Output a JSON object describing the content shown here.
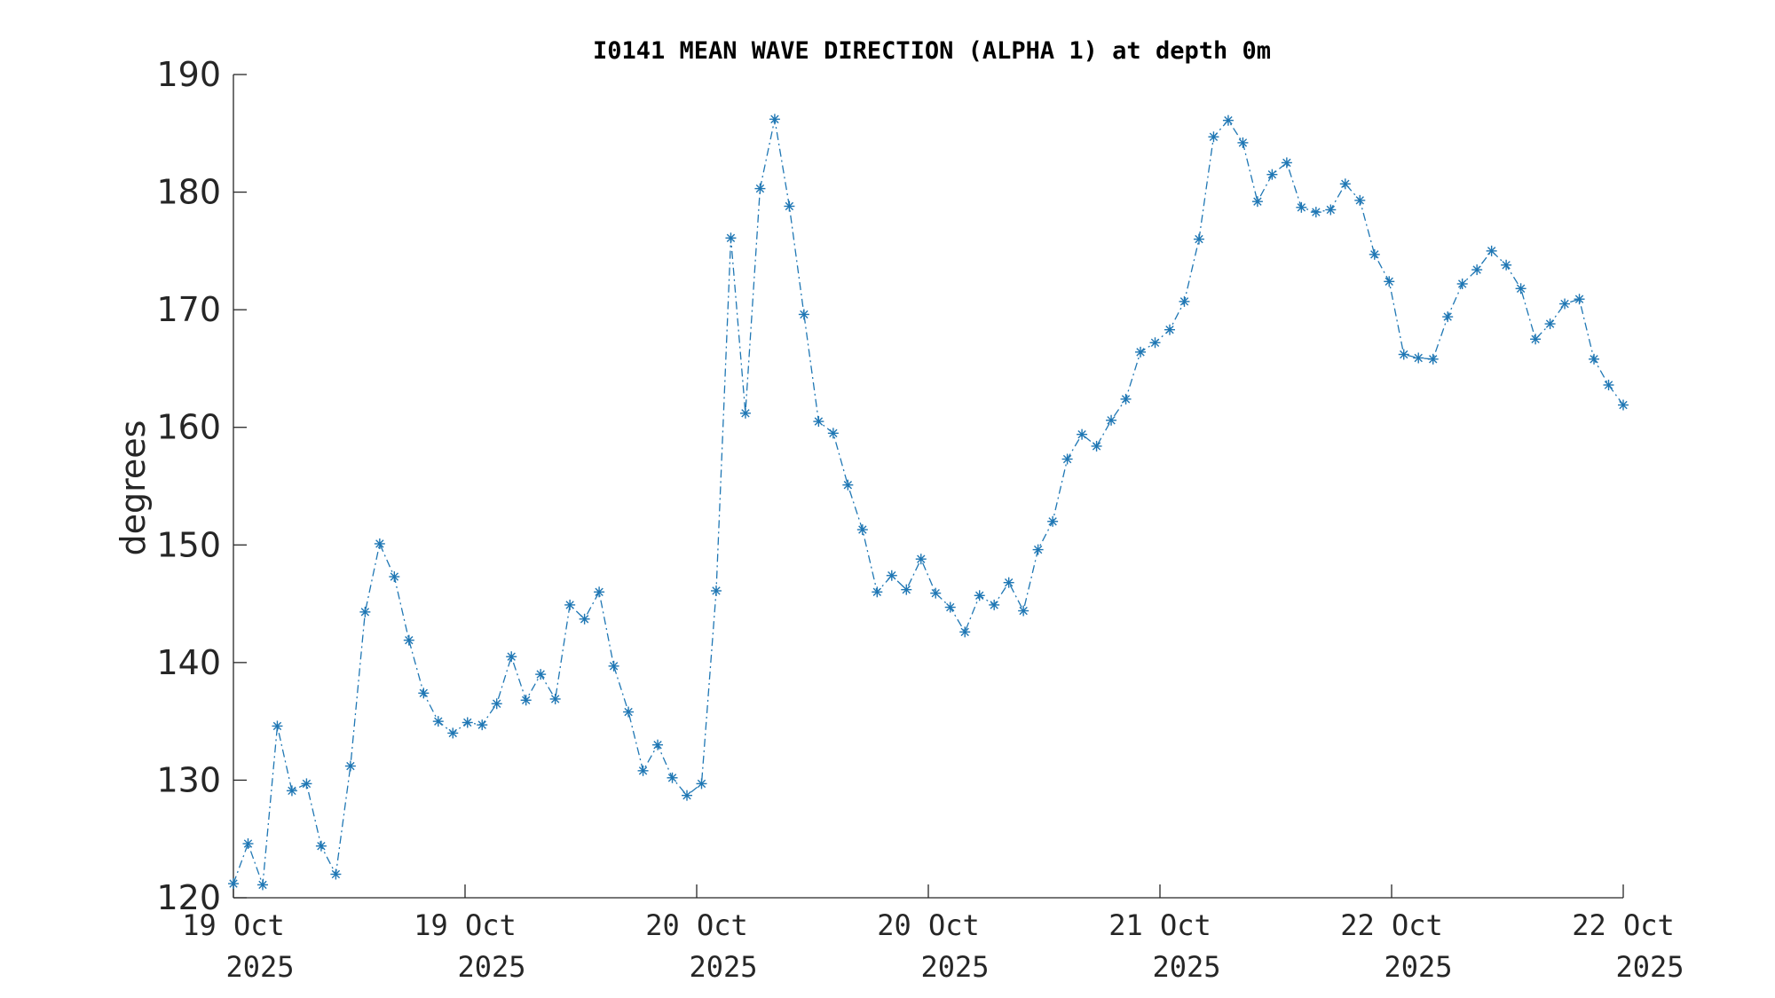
{
  "chart_data": {
    "type": "line",
    "title": "I0141 MEAN WAVE DIRECTION (ALPHA 1) at depth 0m",
    "ylabel": "degrees",
    "xlabel": "",
    "ylim": [
      120,
      190
    ],
    "yticks": [
      "120",
      "130",
      "140",
      "150",
      "160",
      "170",
      "180",
      "190"
    ],
    "xlim": [
      "2025-10-19T00:00",
      "2025-10-22T00:00"
    ],
    "xticks": [
      {
        "line1": "19 Oct",
        "line2": "2025"
      },
      {
        "line1": "19 Oct",
        "line2": "2025"
      },
      {
        "line1": "20 Oct",
        "line2": "2025"
      },
      {
        "line1": "20 Oct",
        "line2": "2025"
      },
      {
        "line1": "21 Oct",
        "line2": "2025"
      },
      {
        "line1": "22 Oct",
        "line2": "2025"
      },
      {
        "line1": "22 Oct",
        "line2": "2025"
      }
    ],
    "grid": false,
    "marker": "asterisk",
    "line_style": "dash-dot",
    "color": "#1f77b4",
    "series": [
      {
        "values": [
          121.2,
          124.6,
          121.1,
          134.6,
          129.1,
          129.7,
          124.4,
          122.0,
          131.2,
          144.3,
          150.1,
          147.3,
          141.9,
          137.4,
          135.0,
          134.0,
          134.9,
          134.7,
          136.5,
          140.5,
          136.8,
          139.0,
          136.9,
          144.9,
          143.7,
          146.0,
          139.7,
          135.8,
          130.8,
          133.0,
          130.2,
          128.7,
          129.7,
          146.1,
          176.1,
          161.2,
          180.3,
          186.2,
          178.8,
          169.6,
          160.5,
          159.5,
          155.1,
          151.3,
          146.0,
          147.4,
          146.2,
          148.8,
          145.9,
          144.7,
          142.6,
          145.7,
          144.9,
          146.8,
          144.4,
          149.6,
          152.0,
          157.3,
          159.4,
          158.4,
          160.6,
          162.4,
          166.4,
          167.2,
          168.3,
          170.7,
          176.0,
          184.7,
          186.1,
          184.2,
          179.2,
          181.5,
          182.5,
          178.7,
          178.3,
          178.5,
          180.7,
          179.3,
          174.7,
          172.4,
          166.2,
          165.9,
          165.8,
          169.4,
          172.2,
          173.4,
          175.0,
          173.8,
          171.8,
          167.5,
          168.8,
          170.5,
          170.9,
          165.8,
          163.6,
          161.9
        ]
      }
    ]
  }
}
